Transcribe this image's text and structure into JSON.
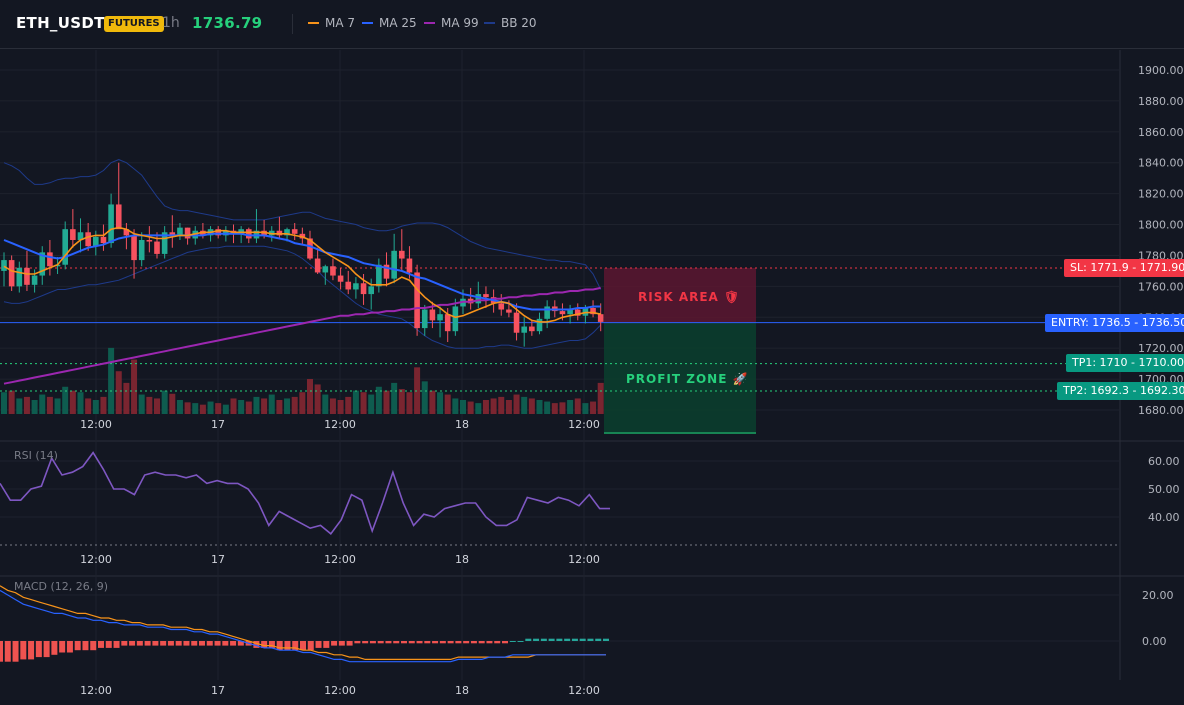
{
  "header": {
    "symbol": "ETH_USDT",
    "badge": "FUTURES",
    "timeframe": "1h",
    "price": "1736.79"
  },
  "legend": [
    {
      "name": "MA 7",
      "color": "#f7931a"
    },
    {
      "name": "MA 25",
      "color": "#2962ff"
    },
    {
      "name": "MA 99",
      "color": "#9c27b0"
    },
    {
      "name": "BB 20",
      "color": "#1e3a8a"
    }
  ],
  "trade": {
    "sl_label": "SL: 1771.9 - 1771.90",
    "entry_label": "ENTRY: 1736.5 - 1736.50",
    "tp1_label": "TP1: 1710 - 1710.00",
    "tp2_label": "TP2: 1692.3 - 1692.30",
    "risk_label": "RISK AREA",
    "profit_label": "PROFIT ZONE",
    "risk_icon": "shield-icon",
    "profit_icon": "rocket-icon",
    "colors": {
      "sl": "#f23645",
      "entry": "#2962ff",
      "tp": "#089981",
      "up": "#089981",
      "down": "#f23645"
    }
  },
  "panes": {
    "rsi_label": "RSI (14)",
    "macd_label": "MACD (12, 26, 9)"
  },
  "chart_data": [
    {
      "type": "candlestick",
      "title": "",
      "y_ticks": [
        "1900.00",
        "1880.00",
        "1860.00",
        "1840.00",
        "1820.00",
        "1800.00",
        "1780.00",
        "1760.00",
        "1740.00",
        "1720.00",
        "1700.00",
        "1680.00"
      ],
      "x_ticks": [
        "12:00",
        "17",
        "12:00",
        "18",
        "12:00"
      ],
      "ylim": [
        1675,
        1910
      ],
      "ohlc": [
        [
          1770,
          1782,
          1760,
          1777
        ],
        [
          1777,
          1780,
          1757,
          1760
        ],
        [
          1760,
          1776,
          1756,
          1772
        ],
        [
          1772,
          1783,
          1757,
          1761
        ],
        [
          1761,
          1771,
          1756,
          1767
        ],
        [
          1767,
          1786,
          1761,
          1782
        ],
        [
          1782,
          1790,
          1767,
          1773
        ],
        [
          1773,
          1779,
          1768,
          1774
        ],
        [
          1774,
          1802,
          1771,
          1797
        ],
        [
          1797,
          1810,
          1785,
          1790
        ],
        [
          1790,
          1804,
          1782,
          1795
        ],
        [
          1795,
          1801,
          1783,
          1786
        ],
        [
          1786,
          1796,
          1780,
          1792
        ],
        [
          1792,
          1800,
          1783,
          1788
        ],
        [
          1788,
          1820,
          1785,
          1813
        ],
        [
          1813,
          1840,
          1798,
          1797
        ],
        [
          1797,
          1801,
          1784,
          1793
        ],
        [
          1793,
          1797,
          1765,
          1777
        ],
        [
          1777,
          1795,
          1773,
          1790
        ],
        [
          1790,
          1799,
          1782,
          1789
        ],
        [
          1789,
          1795,
          1778,
          1781
        ],
        [
          1781,
          1799,
          1778,
          1795
        ],
        [
          1795,
          1806,
          1785,
          1793
        ],
        [
          1793,
          1801,
          1790,
          1798
        ],
        [
          1798,
          1798,
          1787,
          1791
        ],
        [
          1791,
          1799,
          1787,
          1796
        ],
        [
          1796,
          1801,
          1791,
          1793
        ],
        [
          1793,
          1799,
          1789,
          1797
        ],
        [
          1797,
          1799,
          1791,
          1793
        ],
        [
          1793,
          1799,
          1789,
          1796
        ],
        [
          1796,
          1800,
          1788,
          1794
        ],
        [
          1794,
          1799,
          1788,
          1797
        ],
        [
          1797,
          1798,
          1788,
          1791
        ],
        [
          1791,
          1810,
          1788,
          1796
        ],
        [
          1796,
          1803,
          1791,
          1793
        ],
        [
          1793,
          1799,
          1789,
          1796
        ],
        [
          1796,
          1805,
          1791,
          1793
        ],
        [
          1793,
          1798,
          1789,
          1797
        ],
        [
          1797,
          1801,
          1790,
          1794
        ],
        [
          1794,
          1798,
          1787,
          1791
        ],
        [
          1791,
          1796,
          1777,
          1778
        ],
        [
          1778,
          1785,
          1768,
          1769
        ],
        [
          1769,
          1774,
          1761,
          1773
        ],
        [
          1773,
          1778,
          1764,
          1767
        ],
        [
          1767,
          1772,
          1758,
          1763
        ],
        [
          1763,
          1770,
          1755,
          1758
        ],
        [
          1758,
          1766,
          1752,
          1762
        ],
        [
          1762,
          1768,
          1748,
          1755
        ],
        [
          1755,
          1765,
          1745,
          1760
        ],
        [
          1760,
          1778,
          1756,
          1774
        ],
        [
          1774,
          1782,
          1760,
          1765
        ],
        [
          1765,
          1794,
          1762,
          1783
        ],
        [
          1783,
          1797,
          1770,
          1778
        ],
        [
          1778,
          1786,
          1765,
          1769
        ],
        [
          1769,
          1774,
          1728,
          1733
        ],
        [
          1733,
          1748,
          1728,
          1745
        ],
        [
          1745,
          1750,
          1733,
          1738
        ],
        [
          1738,
          1747,
          1727,
          1742
        ],
        [
          1742,
          1746,
          1724,
          1731
        ],
        [
          1731,
          1752,
          1728,
          1747
        ],
        [
          1747,
          1758,
          1742,
          1752
        ],
        [
          1752,
          1759,
          1745,
          1749
        ],
        [
          1749,
          1763,
          1746,
          1755
        ],
        [
          1755,
          1760,
          1746,
          1753
        ],
        [
          1753,
          1758,
          1743,
          1749
        ],
        [
          1749,
          1755,
          1741,
          1745
        ],
        [
          1745,
          1751,
          1740,
          1743
        ],
        [
          1743,
          1749,
          1725,
          1730
        ],
        [
          1730,
          1740,
          1721,
          1734
        ],
        [
          1734,
          1738,
          1728,
          1731
        ],
        [
          1731,
          1743,
          1729,
          1739
        ],
        [
          1739,
          1751,
          1733,
          1747
        ],
        [
          1747,
          1751,
          1740,
          1744
        ],
        [
          1744,
          1749,
          1738,
          1742
        ],
        [
          1742,
          1748,
          1736,
          1745
        ],
        [
          1745,
          1749,
          1738,
          1741
        ],
        [
          1741,
          1748,
          1736,
          1746
        ],
        [
          1746,
          1751,
          1740,
          1742
        ],
        [
          1742,
          1749,
          1731,
          1737
        ]
      ],
      "volume": [
        28,
        30,
        20,
        22,
        18,
        25,
        22,
        20,
        35,
        30,
        28,
        20,
        18,
        22,
        85,
        55,
        40,
        70,
        25,
        22,
        20,
        30,
        26,
        18,
        15,
        14,
        12,
        16,
        14,
        12,
        20,
        18,
        16,
        22,
        20,
        25,
        18,
        20,
        22,
        28,
        45,
        38,
        25,
        20,
        18,
        22,
        30,
        28,
        25,
        35,
        30,
        40,
        32,
        28,
        60,
        42,
        30,
        28,
        25,
        20,
        18,
        16,
        14,
        18,
        20,
        22,
        18,
        25,
        22,
        20,
        18,
        16,
        14,
        15,
        18,
        20,
        14,
        16,
        40
      ],
      "ma7": [
        1773,
        1770,
        1769,
        1768,
        1768,
        1770,
        1772,
        1774,
        1780,
        1786,
        1790,
        1792,
        1793,
        1793,
        1797,
        1798,
        1797,
        1794,
        1793,
        1792,
        1791,
        1791,
        1792,
        1793,
        1793,
        1794,
        1795,
        1795,
        1796,
        1796,
        1795,
        1795,
        1795,
        1795,
        1795,
        1794,
        1794,
        1794,
        1793,
        1792,
        1790,
        1786,
        1782,
        1779,
        1776,
        1773,
        1768,
        1764,
        1761,
        1761,
        1761,
        1763,
        1766,
        1764,
        1758,
        1753,
        1749,
        1746,
        1742,
        1740,
        1741,
        1743,
        1745,
        1747,
        1749,
        1750,
        1749,
        1745,
        1741,
        1738,
        1737,
        1737,
        1738,
        1740,
        1741,
        1742,
        1743,
        1743,
        1742
      ],
      "ma25": [
        1790,
        1788,
        1786,
        1784,
        1782,
        1780,
        1779,
        1778,
        1779,
        1781,
        1783,
        1785,
        1786,
        1787,
        1789,
        1791,
        1792,
        1793,
        1793,
        1793,
        1793,
        1793,
        1793,
        1793,
        1793,
        1793,
        1793,
        1794,
        1794,
        1794,
        1794,
        1794,
        1793,
        1793,
        1793,
        1792,
        1791,
        1790,
        1788,
        1787,
        1786,
        1784,
        1782,
        1781,
        1780,
        1779,
        1777,
        1775,
        1774,
        1773,
        1772,
        1771,
        1770,
        1768,
        1766,
        1765,
        1763,
        1761,
        1759,
        1757,
        1755,
        1754,
        1753,
        1752,
        1751,
        1750,
        1749,
        1747,
        1746,
        1745,
        1745,
        1745,
        1745,
        1745,
        1745,
        1746,
        1746,
        1747,
        1747
      ],
      "ma99": [
        1697,
        1698,
        1699,
        1700,
        1701,
        1702,
        1703,
        1704,
        1705,
        1706,
        1707,
        1708,
        1709,
        1710,
        1711,
        1712,
        1713,
        1714,
        1715,
        1716,
        1717,
        1718,
        1719,
        1720,
        1721,
        1722,
        1723,
        1724,
        1725,
        1726,
        1727,
        1728,
        1729,
        1730,
        1731,
        1732,
        1733,
        1734,
        1735,
        1736,
        1737,
        1738,
        1739,
        1740,
        1741,
        1741,
        1742,
        1742,
        1743,
        1743,
        1744,
        1744,
        1745,
        1745,
        1746,
        1746,
        1747,
        1748,
        1748,
        1749,
        1750,
        1750,
        1751,
        1751,
        1752,
        1752,
        1753,
        1753,
        1754,
        1754,
        1755,
        1755,
        1756,
        1756,
        1757,
        1757,
        1758,
        1758,
        1759
      ],
      "bb_upper": [
        1840,
        1838,
        1835,
        1830,
        1826,
        1826,
        1827,
        1829,
        1830,
        1830,
        1831,
        1831,
        1832,
        1835,
        1840,
        1842,
        1840,
        1836,
        1832,
        1825,
        1818,
        1812,
        1810,
        1809,
        1809,
        1808,
        1807,
        1806,
        1805,
        1804,
        1803,
        1803,
        1803,
        1803,
        1803,
        1804,
        1805,
        1806,
        1807,
        1808,
        1808,
        1806,
        1804,
        1803,
        1802,
        1801,
        1800,
        1798,
        1797,
        1796,
        1796,
        1797,
        1799,
        1800,
        1801,
        1801,
        1801,
        1800,
        1798,
        1795,
        1792,
        1789,
        1787,
        1785,
        1784,
        1783,
        1782,
        1781,
        1780,
        1779,
        1778,
        1777,
        1777,
        1776,
        1776,
        1775,
        1774,
        1768,
        1758
      ],
      "bb_lower": [
        1750,
        1749,
        1749,
        1750,
        1752,
        1754,
        1756,
        1758,
        1758,
        1759,
        1760,
        1761,
        1761,
        1762,
        1763,
        1764,
        1766,
        1768,
        1770,
        1772,
        1774,
        1776,
        1778,
        1780,
        1782,
        1783,
        1784,
        1785,
        1785,
        1786,
        1786,
        1786,
        1786,
        1786,
        1786,
        1785,
        1784,
        1783,
        1781,
        1778,
        1774,
        1770,
        1765,
        1761,
        1757,
        1753,
        1749,
        1746,
        1744,
        1742,
        1741,
        1740,
        1739,
        1736,
        1732,
        1728,
        1725,
        1723,
        1721,
        1720,
        1720,
        1720,
        1720,
        1721,
        1721,
        1722,
        1722,
        1721,
        1720,
        1720,
        1721,
        1722,
        1723,
        1724,
        1725,
        1725,
        1726,
        1730,
        1735
      ],
      "sl": 1771.9,
      "entry": 1736.5,
      "tp1": 1710,
      "tp2": 1692.3
    },
    {
      "type": "line",
      "title": "RSI (14)",
      "y_ticks": [
        "60.00",
        "50.00",
        "40.00"
      ],
      "x_ticks": [
        "12:00",
        "17",
        "12:00",
        "18",
        "12:00"
      ],
      "ylim": [
        30,
        67
      ],
      "values": [
        52,
        46,
        46,
        50,
        51,
        61,
        55,
        56,
        58,
        63,
        57,
        50,
        50,
        48,
        55,
        56,
        55,
        55,
        54,
        55,
        52,
        53,
        52,
        52,
        50,
        45,
        37,
        42,
        40,
        38,
        36,
        37,
        34,
        39,
        48,
        46,
        35,
        45,
        56,
        45,
        37,
        41,
        40,
        43,
        44,
        45,
        45,
        40,
        37,
        37,
        39,
        47,
        46,
        45,
        47,
        46,
        44,
        48,
        43,
        43
      ],
      "rsi_levels": [
        70,
        30
      ]
    },
    {
      "type": "bar",
      "title": "MACD (12, 26, 9)",
      "y_ticks": [
        "20.00",
        "0.00"
      ],
      "x_ticks": [
        "12:00",
        "17",
        "12:00",
        "18",
        "12:00"
      ],
      "ylim": [
        -14,
        26
      ],
      "histogram": [
        -9,
        -9,
        -9,
        -8,
        -8,
        -7,
        -7,
        -6,
        -5,
        -5,
        -4,
        -4,
        -4,
        -3,
        -3,
        -3,
        -2,
        -2,
        -2,
        -2,
        -2,
        -2,
        -2,
        -2,
        -2,
        -2,
        -2,
        -2,
        -2,
        -2,
        -2,
        -2,
        -2,
        -3,
        -3,
        -3,
        -4,
        -4,
        -4,
        -4,
        -4,
        -3,
        -3,
        -2,
        -2,
        -2,
        -1,
        -1,
        -1,
        -1,
        -1,
        -1,
        -1,
        -1,
        -1,
        -1,
        -1,
        -1,
        -1,
        -1,
        -1,
        -1,
        -1,
        -1,
        -1,
        -1,
        0,
        0,
        1,
        1,
        1,
        1,
        1,
        1,
        1,
        1,
        1,
        1,
        1
      ],
      "macd": [
        22,
        20,
        18,
        16,
        15,
        14,
        13,
        12,
        12,
        11,
        10,
        10,
        9,
        9,
        8,
        8,
        7,
        7,
        7,
        6,
        6,
        6,
        5,
        5,
        5,
        4,
        4,
        3,
        3,
        2,
        1,
        0,
        -1,
        -2,
        -3,
        -3,
        -4,
        -4,
        -4,
        -5,
        -5,
        -6,
        -7,
        -8,
        -8,
        -9,
        -9,
        -9,
        -9,
        -9,
        -9,
        -9,
        -9,
        -9,
        -9,
        -9,
        -9,
        -9,
        -9,
        -8,
        -8,
        -8,
        -8,
        -7,
        -7,
        -7,
        -6,
        -6,
        -6,
        -6,
        -6,
        -6,
        -6,
        -6,
        -6,
        -6,
        -6,
        -6,
        -6
      ],
      "signal": [
        24,
        22,
        21,
        19,
        18,
        17,
        16,
        15,
        14,
        13,
        12,
        12,
        11,
        10,
        10,
        9,
        9,
        8,
        8,
        7,
        7,
        7,
        6,
        6,
        6,
        5,
        5,
        4,
        4,
        3,
        2,
        1,
        0,
        -1,
        -2,
        -2,
        -3,
        -3,
        -3,
        -4,
        -4,
        -5,
        -5,
        -6,
        -6,
        -7,
        -7,
        -8,
        -8,
        -8,
        -8,
        -8,
        -8,
        -8,
        -8,
        -8,
        -8,
        -8,
        -8,
        -7,
        -7,
        -7,
        -7,
        -7,
        -7,
        -7,
        -7,
        -7,
        -7,
        -6,
        -6,
        -6,
        -6,
        -6,
        -6,
        -6,
        -6,
        -6,
        -6
      ]
    }
  ]
}
